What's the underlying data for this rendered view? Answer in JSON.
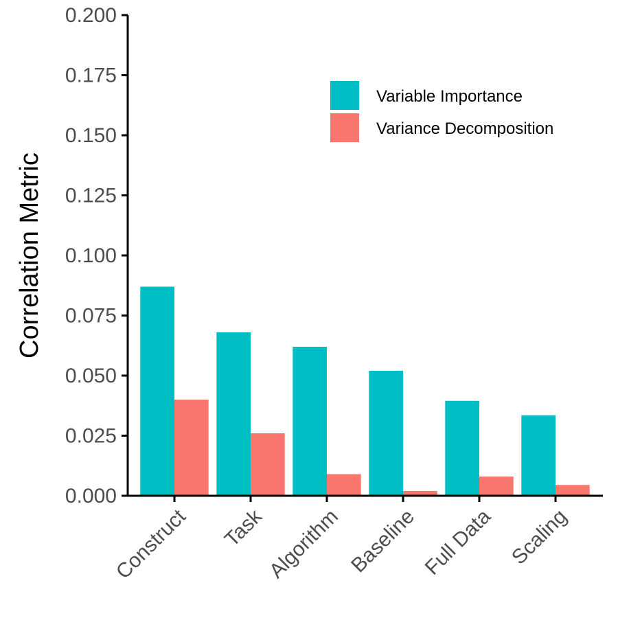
{
  "chart_data": {
    "type": "bar",
    "title": "",
    "xlabel": "",
    "ylabel": "Correlation Metric",
    "ylim": [
      0,
      0.2
    ],
    "yticks": [
      "0.000",
      "0.025",
      "0.050",
      "0.075",
      "0.100",
      "0.125",
      "0.150",
      "0.175",
      "0.200"
    ],
    "grid": false,
    "legend_position": "top-right",
    "categories": [
      "Construct",
      "Task",
      "Algorithm",
      "Baseline",
      "Full Data",
      "Scaling"
    ],
    "series": [
      {
        "name": "Variable Importance",
        "color": "#00BFC4",
        "values": [
          0.087,
          0.068,
          0.062,
          0.052,
          0.0395,
          0.0335
        ]
      },
      {
        "name": "Variance Decomposition",
        "color": "#F8766D",
        "values": [
          0.04,
          0.026,
          0.009,
          0.002,
          0.008,
          0.0045
        ]
      }
    ]
  }
}
